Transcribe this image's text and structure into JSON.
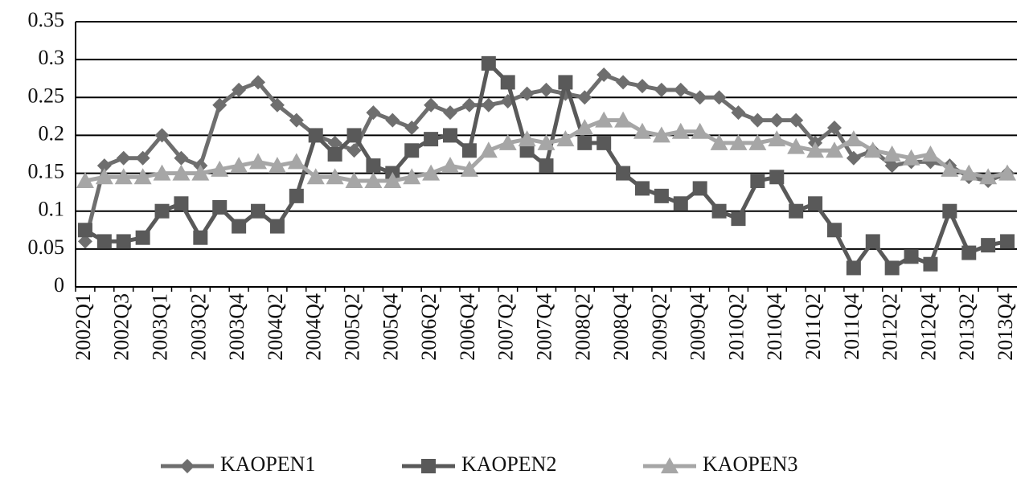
{
  "chart_data": {
    "type": "line",
    "categories": [
      "2002Q1",
      null,
      "2002Q3",
      null,
      "2003Q1",
      null,
      "2003Q2",
      null,
      "2003Q4",
      null,
      "2004Q2",
      null,
      "2004Q4",
      null,
      "2005Q2",
      null,
      "2005Q4",
      null,
      "2006Q2",
      null,
      "2006Q4",
      null,
      "2007Q2",
      null,
      "2007Q4",
      null,
      "2008Q2",
      null,
      "2008Q4",
      null,
      "2009Q2",
      null,
      "2009Q4",
      null,
      "2010Q2",
      null,
      "2010Q4",
      null,
      "2011Q2",
      null,
      "2011Q4",
      null,
      "2012Q2",
      null,
      "2012Q4",
      null,
      "2013Q2",
      null,
      "2013Q4"
    ],
    "series": [
      {
        "name": "KAOPEN1",
        "color": "#6e6e6e",
        "marker": "diamond",
        "values": [
          0.06,
          0.16,
          0.17,
          0.17,
          0.2,
          0.17,
          0.16,
          0.24,
          0.26,
          0.27,
          0.24,
          0.22,
          0.2,
          0.19,
          0.18,
          0.23,
          0.22,
          0.21,
          0.24,
          0.23,
          0.24,
          0.24,
          0.245,
          0.255,
          0.26,
          0.255,
          0.25,
          0.28,
          0.27,
          0.265,
          0.26,
          0.26,
          0.25,
          0.25,
          0.23,
          0.22,
          0.22,
          0.22,
          0.19,
          0.21,
          0.17,
          0.18,
          0.16,
          0.165,
          0.165,
          0.16,
          0.145,
          0.14,
          0.15
        ]
      },
      {
        "name": "KAOPEN2",
        "color": "#595959",
        "marker": "square",
        "values": [
          0.075,
          0.06,
          0.06,
          0.065,
          0.1,
          0.11,
          0.065,
          0.105,
          0.08,
          0.1,
          0.08,
          0.12,
          0.2,
          0.175,
          0.2,
          0.16,
          0.15,
          0.18,
          0.195,
          0.2,
          0.18,
          0.295,
          0.27,
          0.18,
          0.16,
          0.27,
          0.19,
          0.19,
          0.15,
          0.13,
          0.12,
          0.11,
          0.13,
          0.1,
          0.09,
          0.14,
          0.145,
          0.1,
          0.11,
          0.075,
          0.025,
          0.06,
          0.025,
          0.04,
          0.03,
          0.1,
          0.045,
          0.055,
          0.06
        ]
      },
      {
        "name": "KAOPEN3",
        "color": "#a6a6a6",
        "marker": "triangle",
        "values": [
          0.14,
          0.145,
          0.145,
          0.145,
          0.15,
          0.15,
          0.15,
          0.155,
          0.16,
          0.165,
          0.16,
          0.165,
          0.145,
          0.145,
          0.14,
          0.14,
          0.14,
          0.145,
          0.15,
          0.16,
          0.155,
          0.18,
          0.19,
          0.195,
          0.19,
          0.195,
          0.21,
          0.22,
          0.22,
          0.205,
          0.2,
          0.205,
          0.205,
          0.19,
          0.19,
          0.19,
          0.195,
          0.185,
          0.18,
          0.18,
          0.195,
          0.18,
          0.175,
          0.17,
          0.175,
          0.155,
          0.15,
          0.145,
          0.15
        ]
      }
    ],
    "ylim": [
      0,
      0.35
    ],
    "yticks": [
      0,
      0.05,
      0.1,
      0.15,
      0.2,
      0.25,
      0.3,
      0.35
    ],
    "grid": true,
    "legend": "bottom"
  }
}
